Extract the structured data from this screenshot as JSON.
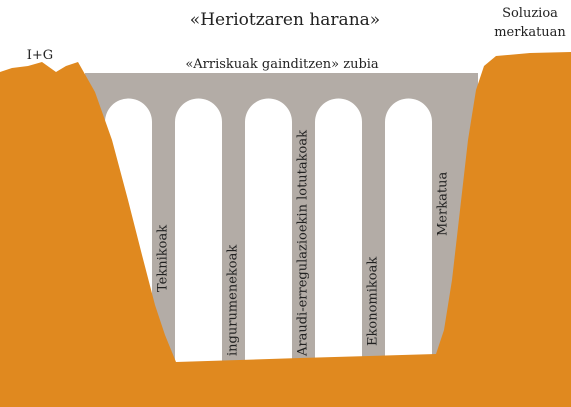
{
  "title": "«Heriotzaren harana»",
  "left_label": "I+G",
  "right_label": [
    "Soluzioa",
    "merkatuan"
  ],
  "bridge": {
    "label": "«Arriskuak gainditzen» zubia",
    "pillars": [
      "Teknikoak",
      "ingurumenekoak",
      "Araudi-erregulazioekin lotutakoak",
      "Ekonomikoak",
      "Merkatua"
    ]
  }
}
